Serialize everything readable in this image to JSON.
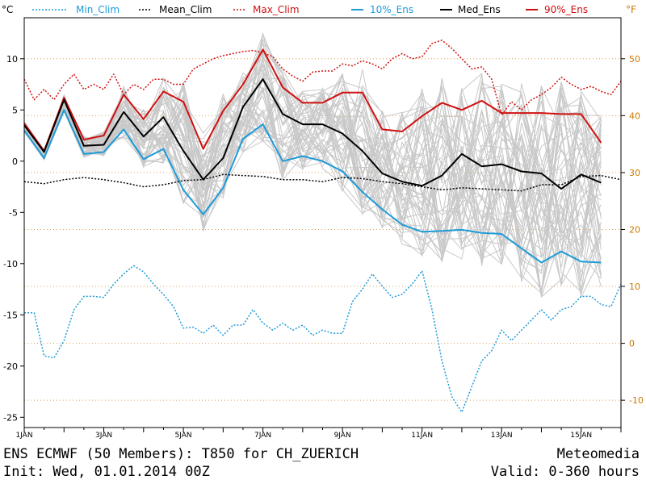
{
  "chart_data": {
    "type": "line",
    "units": {
      "left": "°C",
      "right": "°F"
    },
    "ylim": [
      -26,
      14
    ],
    "xlim": [
      0,
      360
    ],
    "y_ticks": [
      10,
      5,
      0,
      -5,
      -10,
      -15,
      -20,
      -25
    ],
    "f_ticks": [
      50,
      40,
      30,
      20,
      10,
      0,
      -10
    ],
    "x_ticks": [
      "1JAN",
      "3JAN",
      "5JAN",
      "7JAN",
      "9JAN",
      "11JAN",
      "13JAN",
      "15JAN"
    ],
    "grid": "dotted orange horizontal gridlines at each °F tick",
    "legend": [
      {
        "name": "Min_Clim",
        "color": "#1e9bd7",
        "style": "dotted"
      },
      {
        "name": "Mean_Clim",
        "color": "#000000",
        "style": "dotted"
      },
      {
        "name": "Max_Clim",
        "color": "#d01010",
        "style": "dotted"
      },
      {
        "name": "10%_Ens",
        "color": "#1e9bd7",
        "style": "solid"
      },
      {
        "name": "Med_Ens",
        "color": "#000000",
        "style": "solid"
      },
      {
        "name": "90%_Ens",
        "color": "#d01010",
        "style": "solid"
      }
    ],
    "series": [
      {
        "name": "90%_Ens",
        "color": "#d01010",
        "style": "solid",
        "width": 2,
        "x": [
          0,
          12,
          24,
          36,
          48,
          60,
          72,
          84,
          96,
          108,
          120,
          132,
          144,
          156,
          168,
          180,
          192,
          204,
          216,
          228,
          240,
          252,
          264,
          276,
          288,
          300,
          312,
          324,
          336,
          348
        ],
        "y": [
          3.7,
          1,
          6.2,
          2.1,
          2.5,
          6.5,
          4.1,
          6.8,
          5.8,
          1.2,
          4.9,
          7.5,
          10.9,
          7.2,
          5.7,
          5.7,
          6.7,
          6.7,
          3.1,
          2.9,
          4.4,
          5.7,
          5,
          5.9,
          4.7,
          4.7,
          4.7,
          4.6,
          4.6,
          1.8
        ]
      },
      {
        "name": "Med_Ens",
        "color": "#000000",
        "style": "solid",
        "width": 2,
        "x": [
          0,
          12,
          24,
          36,
          48,
          60,
          72,
          84,
          96,
          108,
          120,
          132,
          144,
          156,
          168,
          180,
          192,
          204,
          216,
          228,
          240,
          252,
          264,
          276,
          288,
          300,
          312,
          324,
          336,
          348
        ],
        "y": [
          3.5,
          0.9,
          6,
          1.5,
          1.6,
          4.8,
          2.4,
          4.3,
          1,
          -1.8,
          0.3,
          5.3,
          8,
          4.6,
          3.6,
          3.6,
          2.7,
          1,
          -1.2,
          -2,
          -2.4,
          -1.4,
          0.7,
          -0.5,
          -0.3,
          -1,
          -1.2,
          -2.7,
          -1.3,
          -2.1
        ]
      },
      {
        "name": "10%_Ens",
        "color": "#1e9bd7",
        "style": "solid",
        "width": 2,
        "x": [
          0,
          12,
          24,
          36,
          48,
          60,
          72,
          84,
          96,
          108,
          120,
          132,
          144,
          156,
          168,
          180,
          192,
          204,
          216,
          228,
          240,
          252,
          264,
          276,
          288,
          300,
          312,
          324,
          336,
          348
        ],
        "y": [
          3,
          0.3,
          5,
          0.7,
          0.9,
          3.1,
          0.2,
          1.2,
          -2.8,
          -5.2,
          -2.6,
          2.2,
          3.6,
          0,
          0.5,
          0,
          -1,
          -3,
          -4.7,
          -6.2,
          -6.9,
          -6.8,
          -6.7,
          -7,
          -7.1,
          -8.5,
          -9.9,
          -8.8,
          -9.8,
          -9.9
        ]
      },
      {
        "name": "Max_Clim",
        "color": "#d01010",
        "style": "dotted",
        "width": 1.5,
        "x": [
          0,
          6,
          12,
          18,
          24,
          30,
          36,
          42,
          48,
          54,
          60,
          66,
          72,
          78,
          84,
          90,
          96,
          102,
          108,
          114,
          120,
          126,
          132,
          138,
          144,
          150,
          156,
          162,
          168,
          174,
          180,
          186,
          192,
          198,
          204,
          210,
          216,
          222,
          228,
          234,
          240,
          246,
          252,
          258,
          264,
          270,
          276,
          282,
          288,
          294,
          300,
          306,
          312,
          318,
          324,
          330,
          336,
          342,
          348,
          354,
          360
        ],
        "y": [
          8,
          6,
          7,
          6,
          7.5,
          8.5,
          7,
          7.5,
          7,
          8.5,
          6.5,
          7.5,
          7,
          8,
          8,
          7.5,
          7.5,
          9,
          9.5,
          10,
          10.3,
          10.5,
          10.7,
          10.8,
          10.6,
          10.2,
          9,
          8.3,
          7.8,
          8.7,
          8.8,
          8.8,
          9.5,
          9.3,
          9.8,
          9.5,
          9,
          10,
          10.5,
          10,
          10.2,
          11.5,
          11.8,
          11,
          10,
          9,
          9.2,
          8,
          4.5,
          5.8,
          5,
          6,
          6.5,
          7.2,
          8.2,
          7.5,
          7,
          7.3,
          6.8,
          6.5,
          7.8
        ]
      },
      {
        "name": "Mean_Clim",
        "color": "#000000",
        "style": "dotted",
        "width": 1.5,
        "x": [
          0,
          12,
          24,
          36,
          48,
          60,
          72,
          84,
          96,
          108,
          120,
          132,
          144,
          156,
          168,
          180,
          192,
          204,
          216,
          228,
          240,
          252,
          264,
          276,
          288,
          300,
          312,
          324,
          336,
          348,
          360
        ],
        "y": [
          -2,
          -2.2,
          -1.8,
          -1.6,
          -1.8,
          -2.1,
          -2.5,
          -2.3,
          -1.9,
          -1.8,
          -1.3,
          -1.4,
          -1.5,
          -1.8,
          -1.8,
          -2,
          -1.6,
          -1.7,
          -2,
          -2.2,
          -2.5,
          -2.8,
          -2.6,
          -2.7,
          -2.8,
          -2.9,
          -2.3,
          -2.3,
          -1.5,
          -1.4,
          -1.8
        ]
      },
      {
        "name": "Min_Clim",
        "color": "#1e9bd7",
        "style": "dotted",
        "width": 1.5,
        "x": [
          0,
          6,
          12,
          18,
          24,
          30,
          36,
          42,
          48,
          54,
          60,
          66,
          72,
          78,
          84,
          90,
          96,
          102,
          108,
          114,
          120,
          126,
          132,
          138,
          144,
          150,
          156,
          162,
          168,
          174,
          180,
          186,
          192,
          198,
          204,
          210,
          216,
          222,
          228,
          234,
          240,
          246,
          252,
          258,
          264,
          270,
          276,
          282,
          288,
          294,
          300,
          306,
          312,
          318,
          324,
          330,
          336,
          342,
          348,
          354,
          360
        ],
        "y": [
          -14.8,
          -14.8,
          -19,
          -19.2,
          -17.5,
          -14.5,
          -13.2,
          -13.2,
          -13.3,
          -12,
          -11,
          -10.2,
          -10.8,
          -12,
          -13,
          -14.2,
          -16.3,
          -16.2,
          -16.8,
          -16,
          -17,
          -16,
          -16,
          -14.5,
          -15.8,
          -16.5,
          -15.8,
          -16.5,
          -16,
          -17,
          -16.5,
          -16.8,
          -16.8,
          -13.7,
          -12.5,
          -11,
          -12.2,
          -13.3,
          -13,
          -12,
          -10.7,
          -14.5,
          -19.5,
          -23,
          -24.5,
          -22,
          -19.5,
          -18.5,
          -16.5,
          -17.5,
          -16.5,
          -15.5,
          -14.5,
          -15.5,
          -14.5,
          -14.2,
          -13.2,
          -13.2,
          -14,
          -14.2,
          -12
        ]
      }
    ]
  },
  "legend_labels": {
    "min_clim": "Min_Clim",
    "mean_clim": "Mean_Clim",
    "max_clim": "Max_Clim",
    "ens10": "10%_Ens",
    "med_ens": "Med_Ens",
    "ens90": "90%_Ens"
  },
  "footer": {
    "line1_left": "ENS ECMWF (50 Members): T850 for CH_ZUERICH",
    "line2_left": "Init: Wed, 01.01.2014 00Z",
    "line1_right": "Meteomedia",
    "line2_right": "Valid: 0-360 hours"
  }
}
